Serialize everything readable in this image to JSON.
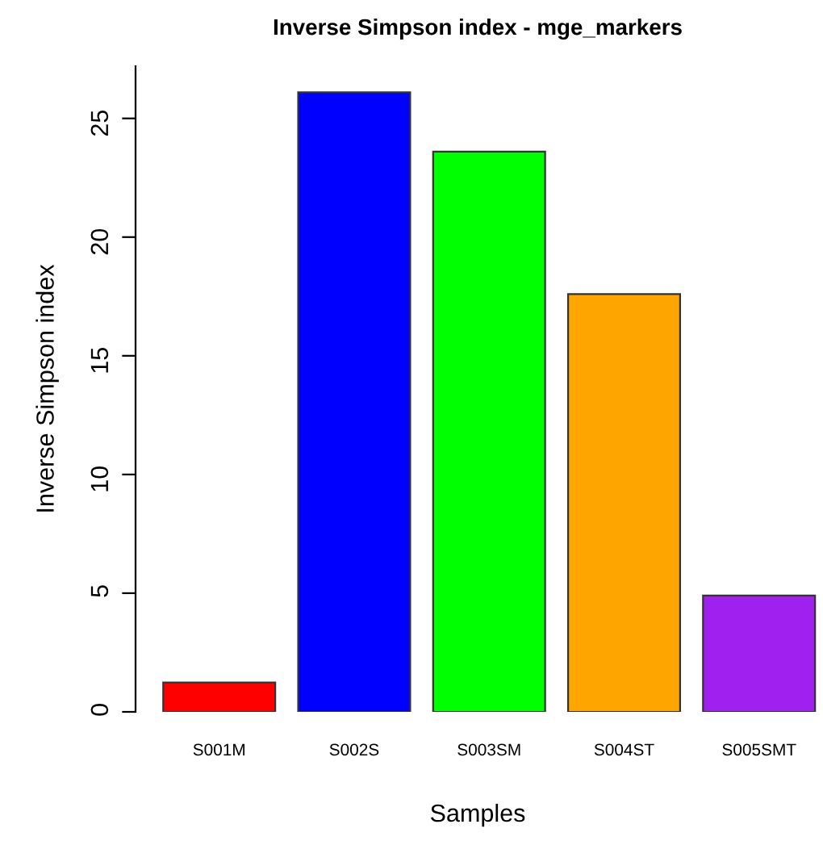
{
  "chart_data": {
    "type": "bar",
    "title": "Inverse Simpson index - mge_markers",
    "xlabel": "Samples",
    "ylabel": "Inverse Simpson index",
    "categories": [
      "S001M",
      "S002S",
      "S003SM",
      "S004ST",
      "S005SMT"
    ],
    "values": [
      1.24,
      26.1,
      23.6,
      17.6,
      4.9
    ],
    "colors": [
      "#ff0000",
      "#0000ff",
      "#00ff00",
      "#ffa500",
      "#a020f0"
    ],
    "ylim": [
      0,
      27.2
    ],
    "yticks": [
      0,
      5,
      10,
      15,
      20,
      25
    ],
    "grid": false,
    "legend": false
  }
}
